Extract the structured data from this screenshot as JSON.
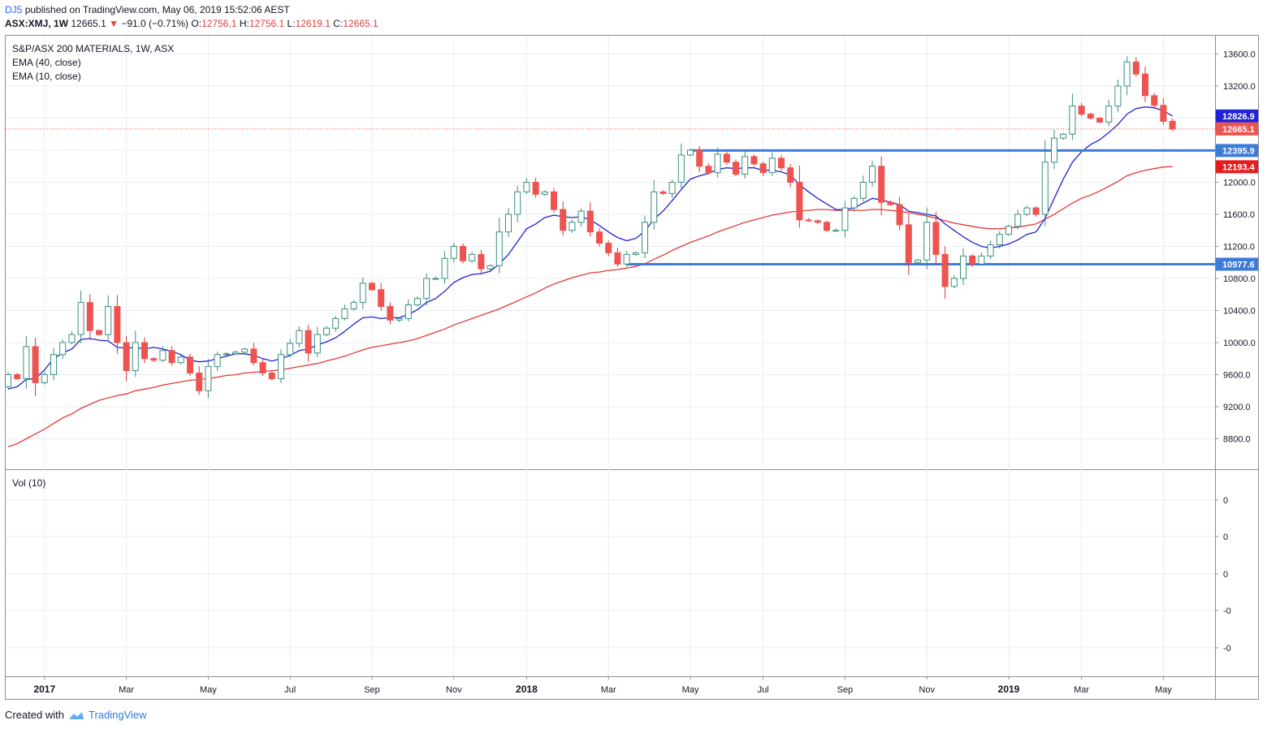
{
  "header": {
    "user": "DJ5",
    "published": "published on TradingView.com, May 06, 2019 15:52:06 AEST",
    "symbol": "ASX:XMJ, 1W",
    "last": "12665.1",
    "change_arrow": "▼",
    "change": "−91.0 (−0.71%)",
    "o_label": "O:",
    "o_val": "12756.1",
    "h_label": "H:",
    "h_val": "12756.1",
    "l_label": "L:",
    "l_val": "12619.1",
    "c_label": "C:",
    "c_val": "12665.1"
  },
  "legend": {
    "title": "S&P/ASX 200 MATERIALS, 1W, ASX",
    "ema40": "EMA (40, close)",
    "ema10": "EMA (10, close)",
    "volume": "Vol (10)"
  },
  "footer": {
    "created_with": "Created with",
    "brand": "TradingView"
  },
  "colors": {
    "up": "#53b9a4",
    "down": "#ef5350",
    "ema10": "#2121d6",
    "ema40": "#e53935",
    "hline": "#3d7bd9",
    "grid": "#e8edf3",
    "text": "#131722"
  },
  "chart_data": {
    "type": "candlestick",
    "title": "S&P/ASX 200 MATERIALS, 1W, ASX",
    "interval": "1W",
    "ylim": [
      8400,
      13800
    ],
    "y_ticks": [
      8800,
      9200,
      9600,
      10000,
      10400,
      10800,
      11200,
      11600,
      12000,
      12400,
      12800,
      13200,
      13600
    ],
    "y_tick_labels": [
      "8800.0",
      "9200.0",
      "9600.0",
      "10000.0",
      "10400.0",
      "10800.0",
      "11200.0",
      "11600.0",
      "12000.0",
      "12400.0",
      "12800.0",
      "13200.0",
      "13600.0"
    ],
    "x_labels": [
      {
        "label": "2017",
        "week": 4,
        "bold": true
      },
      {
        "label": "Mar",
        "week": 13
      },
      {
        "label": "May",
        "week": 22
      },
      {
        "label": "Jul",
        "week": 31
      },
      {
        "label": "Sep",
        "week": 40
      },
      {
        "label": "Nov",
        "week": 49
      },
      {
        "label": "2018",
        "week": 57,
        "bold": true
      },
      {
        "label": "Mar",
        "week": 66
      },
      {
        "label": "May",
        "week": 75
      },
      {
        "label": "Jul",
        "week": 83
      },
      {
        "label": "Sep",
        "week": 92
      },
      {
        "label": "Nov",
        "week": 101
      },
      {
        "label": "2019",
        "week": 110,
        "bold": true
      },
      {
        "label": "Mar",
        "week": 118
      },
      {
        "label": "May",
        "week": 127
      }
    ],
    "price_labels": [
      {
        "value": 12826.9,
        "text": "12826.9",
        "color": "#2121d6"
      },
      {
        "value": 12665.1,
        "text": "12665.1",
        "color": "#ef5350"
      },
      {
        "value": 12395.9,
        "text": "12395.9",
        "color": "#3d7bd9"
      },
      {
        "value": 12193.4,
        "text": "12193.4",
        "color": "#e51c1c"
      },
      {
        "value": 10977.6,
        "text": "10977.6",
        "color": "#3d7bd9"
      }
    ],
    "horizontal_levels": [
      {
        "value": 12395.9,
        "from_week": 75
      },
      {
        "value": 10977.6,
        "from_week": 68
      }
    ],
    "last_price": 12665.1,
    "closes": [
      9600,
      9550,
      9950,
      9500,
      9600,
      9850,
      10000,
      10100,
      10500,
      10150,
      10100,
      10450,
      10000,
      9650,
      10000,
      9800,
      9780,
      9900,
      9750,
      9820,
      9620,
      9400,
      9700,
      9850,
      9860,
      9880,
      9920,
      9750,
      9620,
      9550,
      9850,
      9990,
      10150,
      9870,
      10100,
      10180,
      10300,
      10420,
      10500,
      10740,
      10660,
      10450,
      10280,
      10300,
      10470,
      10550,
      10800,
      10800,
      11050,
      11200,
      11020,
      11100,
      10920,
      10960,
      11380,
      11600,
      11880,
      12000,
      11850,
      11880,
      11660,
      11400,
      11500,
      11640,
      11380,
      11240,
      11120,
      10980,
      11100,
      11120,
      11500,
      11880,
      11860,
      12000,
      12340,
      12400,
      12200,
      12120,
      12350,
      12250,
      12100,
      12320,
      12230,
      12120,
      12300,
      12180,
      12000,
      11530,
      11520,
      11500,
      11400,
      11400,
      11680,
      11800,
      12000,
      12200,
      11750,
      11720,
      11470,
      11000,
      11030,
      11500,
      11100,
      10700,
      10800,
      11080,
      10980,
      11080,
      11220,
      11350,
      11450,
      11600,
      11680,
      11600,
      12250,
      12550,
      12600,
      12950,
      12850,
      12800,
      12750,
      12950,
      13200,
      13500,
      13350,
      13080,
      12960,
      12760,
      12665
    ],
    "ema10": [
      9420,
      9450,
      9540,
      9550,
      9660,
      9800,
      9870,
      9920,
      10040,
      10050,
      10030,
      10020,
      9940,
      9930,
      9940,
      9920,
      9940,
      9920,
      9890,
      9850,
      9780,
      9760,
      9770,
      9800,
      9830,
      9860,
      9860,
      9840,
      9800,
      9770,
      9800,
      9840,
      9900,
      9920,
      9970,
      10010,
      10060,
      10140,
      10230,
      10310,
      10320,
      10300,
      10310,
      10310,
      10350,
      10410,
      10500,
      10550,
      10640,
      10750,
      10810,
      10850,
      10860,
      10890,
      10980,
      11100,
      11260,
      11420,
      11480,
      11560,
      11590,
      11570,
      11560,
      11570,
      11530,
      11460,
      11380,
      11310,
      11270,
      11300,
      11390,
      11540,
      11640,
      11770,
      11910,
      12040,
      12080,
      12110,
      12160,
      12180,
      12170,
      12180,
      12180,
      12150,
      12150,
      12130,
      12090,
      11970,
      11880,
      11800,
      11730,
      11660,
      11660,
      11680,
      11740,
      11800,
      11780,
      11750,
      11720,
      11640,
      11620,
      11600,
      11580,
      11480,
      11400,
      11320,
      11250,
      11200,
      11180,
      11200,
      11230,
      11280,
      11350,
      11380,
      11550,
      11800,
      12040,
      12250,
      12380,
      12470,
      12530,
      12620,
      12720,
      12850,
      12920,
      12940,
      12930,
      12890,
      12827
    ],
    "ema40": [
      8700,
      8740,
      8800,
      8860,
      8920,
      8990,
      9060,
      9110,
      9180,
      9230,
      9280,
      9310,
      9340,
      9360,
      9400,
      9420,
      9440,
      9470,
      9490,
      9510,
      9530,
      9540,
      9550,
      9570,
      9590,
      9600,
      9620,
      9630,
      9640,
      9650,
      9660,
      9680,
      9700,
      9720,
      9740,
      9770,
      9800,
      9830,
      9870,
      9910,
      9940,
      9960,
      9980,
      10000,
      10020,
      10050,
      10090,
      10130,
      10170,
      10220,
      10260,
      10300,
      10340,
      10380,
      10420,
      10470,
      10520,
      10570,
      10620,
      10680,
      10730,
      10770,
      10810,
      10840,
      10870,
      10880,
      10900,
      10910,
      10930,
      10950,
      10980,
      11040,
      11090,
      11150,
      11200,
      11250,
      11290,
      11330,
      11380,
      11420,
      11460,
      11500,
      11530,
      11560,
      11590,
      11610,
      11630,
      11640,
      11650,
      11660,
      11660,
      11650,
      11650,
      11650,
      11650,
      11660,
      11660,
      11650,
      11640,
      11620,
      11600,
      11580,
      11550,
      11520,
      11490,
      11470,
      11450,
      11430,
      11420,
      11420,
      11430,
      11440,
      11460,
      11480,
      11540,
      11600,
      11670,
      11740,
      11800,
      11840,
      11890,
      11950,
      12010,
      12080,
      12120,
      12150,
      12170,
      12190,
      12193
    ],
    "volume_panel": {
      "label": "Vol (10)",
      "y_tick_labels": [
        "0",
        "0",
        "0",
        "-0",
        "-0"
      ]
    }
  }
}
